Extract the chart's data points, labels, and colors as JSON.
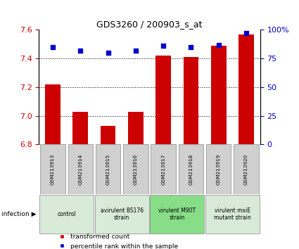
{
  "title": "GDS3260 / 200903_s_at",
  "samples": [
    "GSM213913",
    "GSM213914",
    "GSM213915",
    "GSM213916",
    "GSM213917",
    "GSM213918",
    "GSM213919",
    "GSM213920"
  ],
  "transformed_counts": [
    7.22,
    7.03,
    6.93,
    7.03,
    7.42,
    7.41,
    7.49,
    7.57
  ],
  "percentile_ranks": [
    85,
    82,
    80,
    82,
    86,
    85,
    87,
    97
  ],
  "ylim_left": [
    6.8,
    7.6
  ],
  "yticks_left": [
    6.8,
    7.0,
    7.2,
    7.4,
    7.6
  ],
  "ylim_right": [
    0,
    100
  ],
  "yticks_right": [
    0,
    25,
    50,
    75,
    100
  ],
  "bar_color": "#cc0000",
  "dot_color": "#0000cc",
  "groups": [
    {
      "label": "control",
      "samples": [
        0,
        1
      ],
      "color": "#d8ead8"
    },
    {
      "label": "avirulent BS176\nstrain",
      "samples": [
        2,
        3
      ],
      "color": "#d8ead8"
    },
    {
      "label": "virulent M90T\nstrain",
      "samples": [
        4,
        5
      ],
      "color": "#88dd88"
    },
    {
      "label": "virulent mxiE\nmutant strain",
      "samples": [
        6,
        7
      ],
      "color": "#d8ead8"
    }
  ],
  "legend_red_label": "transformed count",
  "legend_blue_label": "percentile rank within the sample",
  "infection_label": "infection",
  "tick_color_left": "#cc0000",
  "tick_color_right": "#0000cc",
  "gridline_ticks": [
    7.0,
    7.2,
    7.4
  ]
}
